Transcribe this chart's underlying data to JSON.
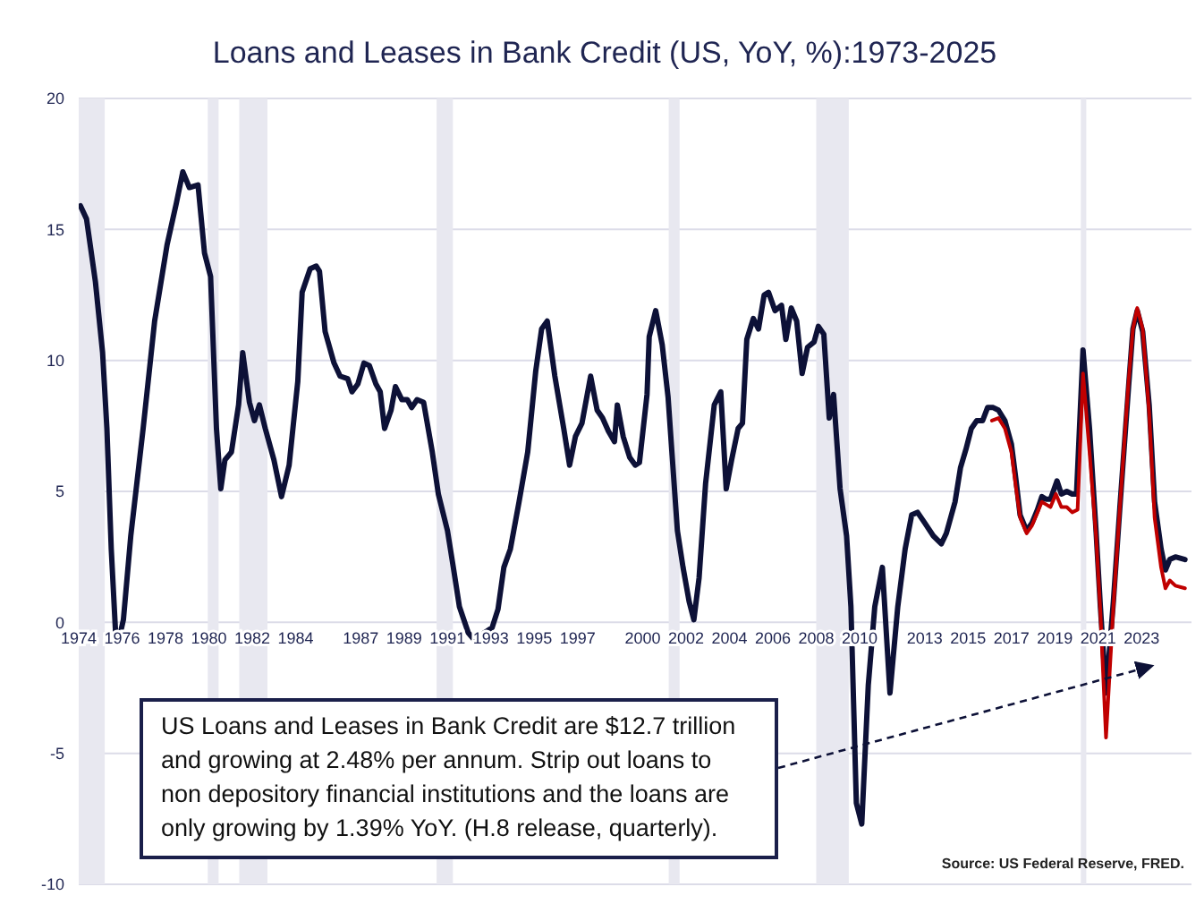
{
  "chart_data": {
    "type": "line",
    "title": "Loans and Leases in Bank Credit (US, YoY, %):1973-2025",
    "annotations": [
      "US Loans and Leases in Bank Credit are $12.7 trillion and growing at 2.48% per annum. Strip out loans to non depository financial institutions and the loans are only growing by 1.39% YoY. (H.8 release, quarterly).",
      "Source: US Federal Reserve, FRED."
    ],
    "xlim": [
      1974,
      2025.3
    ],
    "xticks": [
      1974,
      1976,
      1978,
      1980,
      1982,
      1984,
      1987,
      1989,
      1991,
      1993,
      1995,
      1997,
      2000,
      2002,
      2004,
      2006,
      2008,
      2010,
      2013,
      2015,
      2017,
      2019,
      2021,
      2023
    ],
    "ylim": [
      -10,
      20
    ],
    "yticks": [
      -10,
      -5,
      0,
      5,
      10,
      15,
      20
    ],
    "grid": "y",
    "marker": "none",
    "line_style": "solid",
    "bands": [
      {
        "axis": "x",
        "from": 1974,
        "to": 1975.2,
        "color": "#e8e8f0"
      },
      {
        "axis": "x",
        "from": 1979.95,
        "to": 1980.45,
        "color": "#e8e8f0"
      },
      {
        "axis": "x",
        "from": 1981.4,
        "to": 1982.7,
        "color": "#e8e8f0"
      },
      {
        "axis": "x",
        "from": 1990.5,
        "to": 1991.25,
        "color": "#e8e8f0"
      },
      {
        "axis": "x",
        "from": 2001.2,
        "to": 2001.7,
        "color": "#e8e8f0"
      },
      {
        "axis": "x",
        "from": 2008.0,
        "to": 2009.5,
        "color": "#e8e8f0"
      },
      {
        "axis": "x",
        "from": 2020.2,
        "to": 2020.45,
        "color": "#e8e8f0"
      }
    ],
    "series": [
      {
        "color": "#0d1137",
        "x": [
          1974.08,
          1974.36,
          1974.77,
          1975.1,
          1975.3,
          1975.5,
          1975.7,
          1975.87,
          1976.06,
          1976.4,
          1976.97,
          1977.5,
          1978.07,
          1978.5,
          1978.8,
          1979.1,
          1979.5,
          1979.8,
          1980.08,
          1980.35,
          1980.55,
          1980.74,
          1981.04,
          1981.37,
          1981.56,
          1981.87,
          1982.1,
          1982.33,
          1982.6,
          1983.0,
          1983.35,
          1983.7,
          1984.1,
          1984.3,
          1984.67,
          1984.95,
          1985.1,
          1985.36,
          1985.77,
          1986.05,
          1986.4,
          1986.6,
          1986.87,
          1987.15,
          1987.4,
          1987.7,
          1987.9,
          1988.1,
          1988.4,
          1988.6,
          1988.9,
          1989.15,
          1989.35,
          1989.6,
          1989.9,
          1990.3,
          1990.58,
          1991.0,
          1991.27,
          1991.55,
          1991.96,
          1992.37,
          1992.7,
          1993.06,
          1993.33,
          1993.6,
          1993.9,
          1994.3,
          1994.7,
          1995.07,
          1995.34,
          1995.6,
          1995.95,
          1996.36,
          1996.63,
          1996.9,
          1997.2,
          1997.6,
          1997.9,
          1998.15,
          1998.42,
          1998.7,
          1998.83,
          1999.1,
          1999.4,
          1999.66,
          1999.85,
          2000.2,
          2000.3,
          2000.6,
          2000.9,
          2001.17,
          2001.6,
          2001.86,
          2002.14,
          2002.36,
          2002.6,
          2002.9,
          2003.3,
          2003.6,
          2003.85,
          2004.1,
          2004.4,
          2004.6,
          2004.8,
          2005.1,
          2005.34,
          2005.6,
          2005.8,
          2006.1,
          2006.4,
          2006.6,
          2006.85,
          2007.1,
          2007.35,
          2007.6,
          2007.9,
          2008.1,
          2008.35,
          2008.6,
          2008.8,
          2009.1,
          2009.4,
          2009.6,
          2009.85,
          2010.1,
          2010.4,
          2010.7,
          2011.05,
          2011.4,
          2011.76,
          2012.1,
          2012.4,
          2012.67,
          2013.0,
          2013.4,
          2013.77,
          2014.0,
          2014.4,
          2014.65,
          2014.9,
          2015.15,
          2015.4,
          2015.67,
          2015.9,
          2016.16,
          2016.4,
          2016.7,
          2017.0,
          2017.2,
          2017.4,
          2017.7,
          2017.95,
          2018.2,
          2018.4,
          2018.6,
          2018.8,
          2019.1,
          2019.3,
          2019.55,
          2019.8,
          2020.0,
          2020.3,
          2020.6,
          2020.9,
          2021.1,
          2021.36,
          2021.7,
          2022.0,
          2022.4,
          2022.6,
          2022.8,
          2023.05,
          2023.35,
          2023.6,
          2023.9,
          2024.1,
          2024.3,
          2024.56,
          2025.0
        ],
        "values": [
          15.9,
          15.4,
          13.0,
          10.3,
          7.4,
          2.8,
          -0.4,
          -0.6,
          0.1,
          3.3,
          7.4,
          11.5,
          14.4,
          16.0,
          17.2,
          16.6,
          16.7,
          14.1,
          13.2,
          7.4,
          5.1,
          6.2,
          6.5,
          8.3,
          10.3,
          8.4,
          7.7,
          8.3,
          7.4,
          6.2,
          4.8,
          6.0,
          9.2,
          12.6,
          13.5,
          13.6,
          13.4,
          11.1,
          9.9,
          9.4,
          9.3,
          8.8,
          9.1,
          9.9,
          9.8,
          9.1,
          8.8,
          7.4,
          8.1,
          9.0,
          8.5,
          8.5,
          8.2,
          8.5,
          8.4,
          6.5,
          4.9,
          3.5,
          2.1,
          0.6,
          -0.4,
          -0.8,
          -0.4,
          -0.2,
          0.5,
          2.1,
          2.8,
          4.6,
          6.5,
          9.6,
          11.2,
          11.5,
          9.4,
          7.4,
          6.0,
          7.1,
          7.6,
          9.4,
          8.1,
          7.8,
          7.3,
          6.9,
          8.3,
          7.1,
          6.3,
          6.0,
          6.1,
          8.7,
          10.9,
          11.9,
          10.6,
          8.6,
          3.5,
          2.1,
          0.8,
          0.1,
          1.7,
          5.3,
          8.3,
          8.8,
          5.1,
          6.2,
          7.4,
          7.6,
          10.8,
          11.6,
          11.2,
          12.5,
          12.6,
          11.9,
          12.1,
          10.8,
          12.0,
          11.5,
          9.5,
          10.5,
          10.7,
          11.3,
          11.0,
          7.8,
          8.7,
          5.1,
          3.3,
          0.6,
          -6.9,
          -7.7,
          -2.4,
          0.6,
          2.1,
          -2.7,
          0.6,
          2.8,
          4.1,
          4.2,
          3.8,
          3.3,
          3.0,
          3.4,
          4.6,
          5.9,
          6.6,
          7.4,
          7.7,
          7.7,
          8.2,
          8.2,
          8.1,
          7.7,
          6.8,
          5.5,
          4.1,
          3.5,
          3.8,
          4.3,
          4.8,
          4.7,
          4.7,
          5.4,
          4.9,
          5.0,
          4.9,
          4.9,
          10.4,
          7.4,
          3.5,
          0.6,
          -2.7,
          0.8,
          4.4,
          9.0,
          11.2,
          11.9,
          11.1,
          8.3,
          4.6,
          2.8,
          2.0,
          2.4,
          2.5,
          2.4
        ]
      },
      {
        "color": "#c00000",
        "x": [
          2016.1,
          2016.4,
          2016.7,
          2017.0,
          2017.2,
          2017.4,
          2017.7,
          2017.95,
          2018.2,
          2018.4,
          2018.6,
          2018.8,
          2019.05,
          2019.3,
          2019.55,
          2019.8,
          2020.05,
          2020.3,
          2020.6,
          2020.9,
          2021.1,
          2021.36,
          2021.7,
          2022.0,
          2022.4,
          2022.6,
          2022.8,
          2023.05,
          2023.35,
          2023.6,
          2023.9,
          2024.1,
          2024.3,
          2024.56,
          2025.0
        ],
        "values": [
          7.7,
          7.8,
          7.4,
          6.5,
          5.2,
          4.0,
          3.4,
          3.7,
          4.2,
          4.6,
          4.5,
          4.4,
          4.9,
          4.4,
          4.4,
          4.2,
          4.3,
          9.5,
          6.5,
          3.3,
          0.4,
          -4.4,
          0.6,
          4.4,
          9.2,
          11.2,
          12.0,
          11.2,
          8.0,
          4.0,
          2.1,
          1.3,
          1.6,
          1.4,
          1.3
        ]
      }
    ]
  }
}
